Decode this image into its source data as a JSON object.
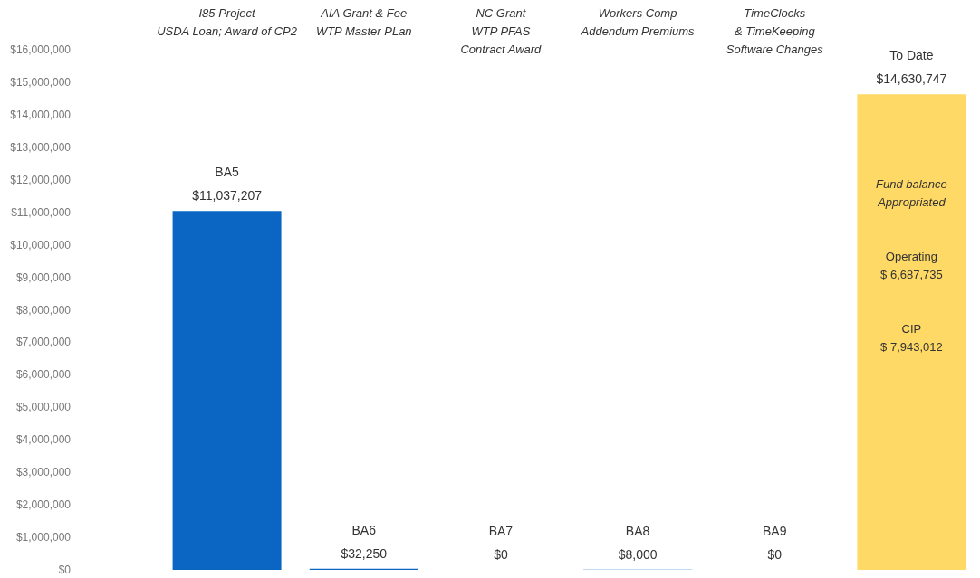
{
  "chart_data": {
    "type": "bar",
    "categories": [
      "BA5",
      "BA6",
      "BA7",
      "BA8",
      "BA9",
      "To Date"
    ],
    "values": [
      11037207,
      32250,
      0,
      8000,
      0,
      14630747
    ],
    "colors": [
      "#0a66c2",
      "#0a66c2",
      "#0a66c2",
      "#0a66c2",
      "#0a66c2",
      "#ffd966"
    ],
    "value_labels": [
      "$11,037,207",
      "$32,250",
      "$0",
      "$8,000",
      "$0",
      "$14,630,747"
    ],
    "ylim": [
      0,
      16000000
    ],
    "yticks": [
      {
        "value": 0,
        "label": "$0"
      },
      {
        "value": 1000000,
        "label": "$1,000,000"
      },
      {
        "value": 2000000,
        "label": "$2,000,000"
      },
      {
        "value": 3000000,
        "label": "$3,000,000"
      },
      {
        "value": 4000000,
        "label": "$4,000,000"
      },
      {
        "value": 5000000,
        "label": "$5,000,000"
      },
      {
        "value": 6000000,
        "label": "$6,000,000"
      },
      {
        "value": 7000000,
        "label": "$7,000,000"
      },
      {
        "value": 8000000,
        "label": "$8,000,000"
      },
      {
        "value": 9000000,
        "label": "$9,000,000"
      },
      {
        "value": 10000000,
        "label": "$10,000,000"
      },
      {
        "value": 11000000,
        "label": "$11,000,000"
      },
      {
        "value": 12000000,
        "label": "$12,000,000"
      },
      {
        "value": 13000000,
        "label": "$13,000,000"
      },
      {
        "value": 14000000,
        "label": "$14,000,000"
      },
      {
        "value": 15000000,
        "label": "$15,000,000"
      },
      {
        "value": 16000000,
        "label": "$16,000,000"
      }
    ],
    "annotations": [
      "I85 Project\nUSDA Loan; Award of CP2",
      "AIA Grant & Fee\nWTP Master PLan",
      "NC Grant\nWTP PFAS\nContract Award",
      "Workers Comp\nAddendum Premiums",
      "TimeClocks\n& TimeKeeping\nSoftware Changes",
      "Fund balance\nAppropriated",
      "Operating\n$ 6,687,735",
      "CIP\n$ 7,943,012"
    ],
    "grid": false
  }
}
